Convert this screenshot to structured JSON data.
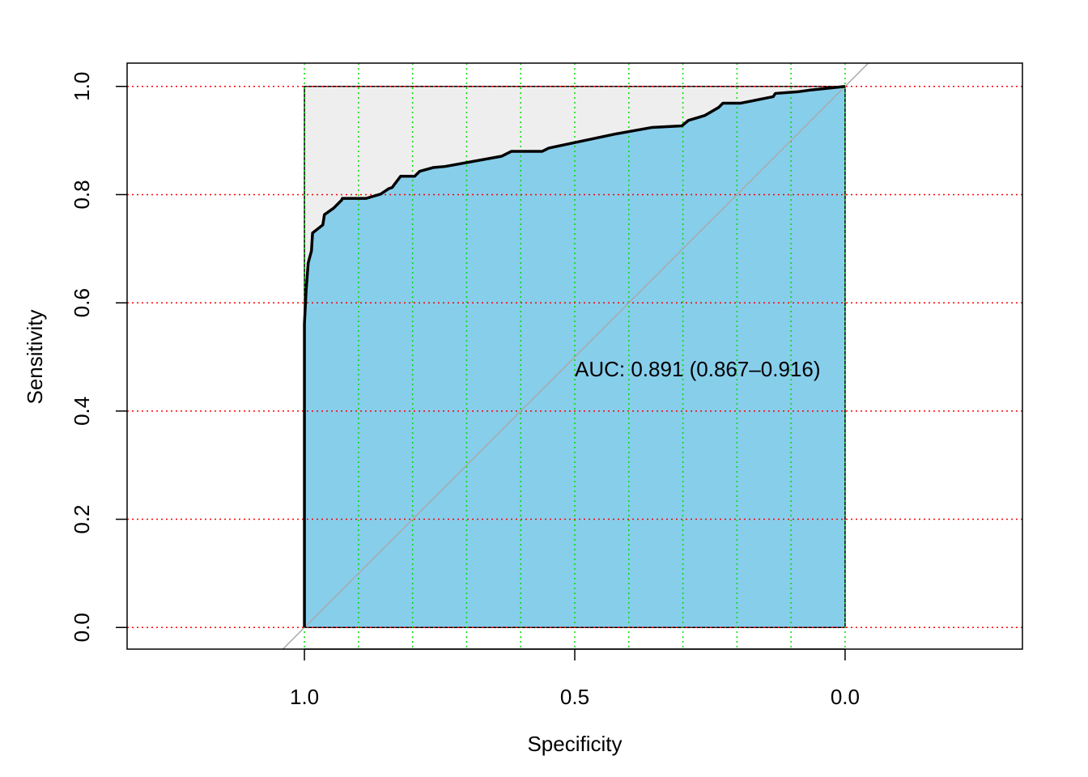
{
  "chart_data": {
    "type": "line",
    "xlabel": "Specificity",
    "ylabel": "Sensitivity",
    "annotation": "AUC: 0.891 (0.867–0.916)",
    "x": [
      1,
      1,
      0.997,
      0.993,
      0.987,
      0.985,
      0.975,
      0.966,
      0.963,
      0.946,
      0.931,
      0.93,
      0.886,
      0.859,
      0.844,
      0.838,
      0.822,
      0.796,
      0.787,
      0.762,
      0.74,
      0.635,
      0.617,
      0.56,
      0.548,
      0.425,
      0.358,
      0.302,
      0.29,
      0.26,
      0.234,
      0.226,
      0.193,
      0.133,
      0.129,
      0.088,
      0.066,
      0
    ],
    "values": [
      0,
      0.561,
      0.621,
      0.674,
      0.696,
      0.729,
      0.737,
      0.744,
      0.763,
      0.775,
      0.79,
      0.793,
      0.793,
      0.801,
      0.811,
      0.813,
      0.834,
      0.834,
      0.843,
      0.85,
      0.852,
      0.871,
      0.88,
      0.88,
      0.886,
      0.912,
      0.924,
      0.927,
      0.937,
      0.946,
      0.961,
      0.969,
      0.969,
      0.981,
      0.987,
      0.99,
      0.993,
      1
    ],
    "color": "#000000",
    "fill_color": "#87ceeb",
    "background_fill": "#eeeeee",
    "diagonal_color": "#aaaaaa",
    "xlim": [
      1.328,
      -0.328
    ],
    "ylim": [
      -0.04,
      1.043
    ],
    "xticks": [
      {
        "value": 1,
        "label": "1.0"
      },
      {
        "value": 0.5,
        "label": "0.5"
      },
      {
        "value": 0,
        "label": "0.0"
      }
    ],
    "yticks": [
      {
        "value": 0,
        "label": "0.0"
      },
      0.2,
      0.4,
      0.6,
      0.8,
      {
        "value": 1,
        "label": "1.0"
      }
    ],
    "xgrid": [
      1,
      0.9,
      0.8,
      0.7,
      0.6,
      0.5,
      0.4,
      0.3,
      0.2,
      0.1,
      0
    ],
    "ygrid": [
      0,
      0.2,
      0.4,
      0.6,
      0.8,
      1
    ],
    "xgrid_color": "#00dd00",
    "ygrid_color": "#ff0000"
  }
}
